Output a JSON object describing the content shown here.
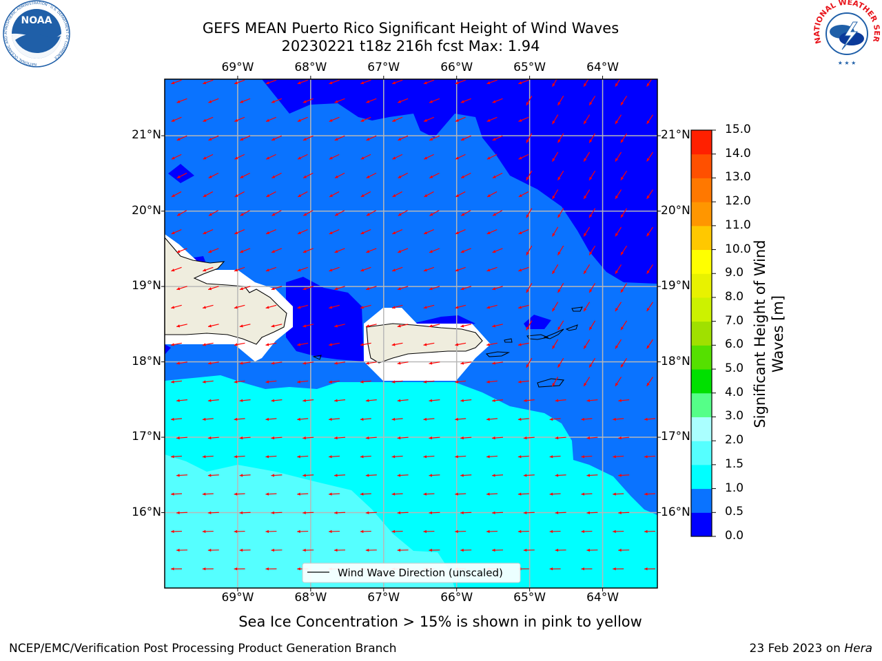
{
  "header": {
    "title_line1": "GEFS MEAN Puerto Rico Significant Height of Wind Waves",
    "title_line2": "20230221 t18z 216h fcst   Max: 1.94"
  },
  "logos": {
    "left": {
      "text": "NOAA",
      "ring_text": "NATIONAL OCEANIC AND ATMOSPHERIC ADMINISTRATION · U.S. DEPARTMENT OF COMMERCE",
      "color": "#1f5fa8"
    },
    "right": {
      "ring_text": "NATIONAL WEATHER SERVICE",
      "color": "#e8141b"
    }
  },
  "map": {
    "lon_labels": [
      "69°W",
      "68°W",
      "67°W",
      "66°W",
      "65°W",
      "64°W"
    ],
    "lat_labels": [
      "21°N",
      "20°N",
      "19°N",
      "18°N",
      "17°N",
      "16°N"
    ],
    "lon_range": [
      -70,
      -63.25
    ],
    "lat_range": [
      15,
      21.75
    ],
    "legend_label": "Wind Wave Direction (unscaled)",
    "arrow_color": "#ff0000",
    "land_color": "#efedde"
  },
  "colorbar": {
    "label": "Significant Height of Wind Waves [m]",
    "label_line1": "Significant Height of Wind",
    "label_line2": "Waves [m]",
    "ticks": [
      "0.0",
      "0.5",
      "1.0",
      "1.5",
      "2.0",
      "3.0",
      "4.0",
      "5.0",
      "6.0",
      "7.0",
      "8.0",
      "9.0",
      "10.0",
      "11.0",
      "12.0",
      "13.0",
      "14.0",
      "15.0"
    ],
    "colors": [
      "#0000ff",
      "#0a73ff",
      "#00ffff",
      "#55ffff",
      "#aaffff",
      "#55ff88",
      "#00e000",
      "#55e000",
      "#a0e000",
      "#ccf200",
      "#e8f200",
      "#ffff00",
      "#ffc800",
      "#ff9600",
      "#ff7800",
      "#ff5000",
      "#ff2000"
    ]
  },
  "ice_note": "Sea Ice Concentration > 15% is shown in pink to yellow",
  "footer": {
    "left": "NCEP/EMC/Verification Post Processing Product Generation Branch",
    "right_prefix": "23 Feb 2023 on ",
    "right_host": "Hera"
  }
}
